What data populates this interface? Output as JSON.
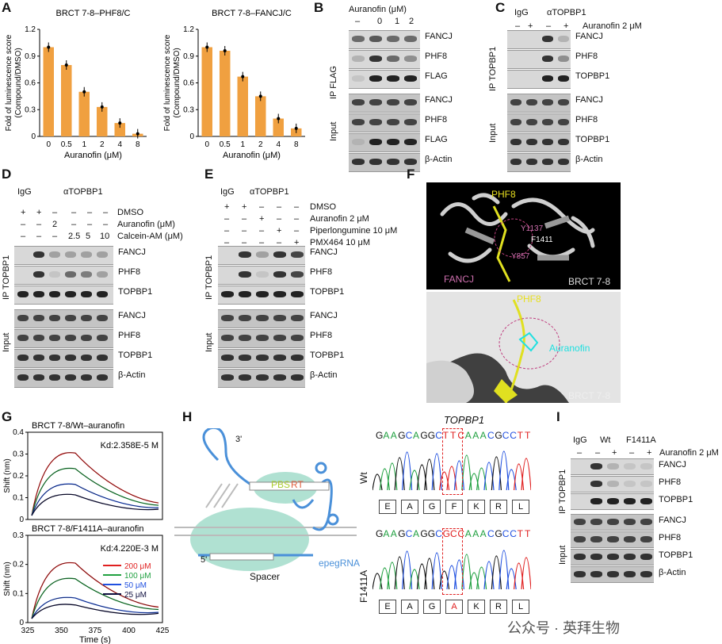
{
  "panel_letters": {
    "A": "A",
    "B": "B",
    "C": "C",
    "D": "D",
    "E": "E",
    "F": "F",
    "G": "G",
    "H": "H",
    "I": "I"
  },
  "chart_data": [
    {
      "type": "bar",
      "title": "BRCT 7-8–PHF8/C",
      "categories": [
        "0",
        "0.5",
        "1",
        "2",
        "4",
        "8"
      ],
      "values": [
        1.0,
        0.8,
        0.5,
        0.33,
        0.15,
        0.03
      ],
      "xlabel": "Auranofin (μM)",
      "ylabel": "Fold of luminescence score (Compound/DMSO)",
      "ylim": [
        0,
        1.2
      ],
      "yticks": [
        "0",
        "0.3",
        "0.6",
        "0.9",
        "1.2"
      ],
      "color": "#f0a040"
    },
    {
      "type": "bar",
      "title": "BRCT 7-8–FANCJ/C",
      "categories": [
        "0",
        "0.5",
        "1",
        "2",
        "4",
        "8"
      ],
      "values": [
        1.0,
        0.96,
        0.67,
        0.45,
        0.2,
        0.09
      ],
      "xlabel": "Auranofin (μM)",
      "ylabel": "Fold of luminescence score (Compound/DMSO)",
      "ylim": [
        0,
        1.2
      ],
      "yticks": [
        "0",
        "0.3",
        "0.6",
        "0.9",
        "1.2"
      ],
      "color": "#f0a040"
    },
    {
      "type": "line",
      "title": "BRCT 7-8/Wt–auranofin",
      "kd": "Kd:2.358E-5 M",
      "xlabel": "",
      "ylabel": "Shift (nm)",
      "ylim": [
        0,
        0.4
      ],
      "yticks": [
        "0",
        "0.1",
        "0.2",
        "0.3",
        "0.4"
      ]
    },
    {
      "type": "line",
      "title": "BRCT 7-8/F1411A–auranofin",
      "kd": "Kd:4.220E-3 M",
      "xlabel": "Time (s)",
      "ylabel": "Shift (nm)",
      "ylim": [
        0,
        0.3
      ],
      "yticks": [
        "0",
        "0.1",
        "0.2",
        "0.3"
      ],
      "xticks": [
        "325",
        "350",
        "375",
        "400",
        "425"
      ],
      "series": [
        {
          "name": "200 μM",
          "color": "#e02020"
        },
        {
          "name": "100 μM",
          "color": "#20a040"
        },
        {
          "name": "50 μM",
          "color": "#2050e0"
        },
        {
          "name": "25 μM",
          "color": "#101040"
        }
      ]
    }
  ],
  "B": {
    "header": "Auranofin (μM)",
    "lanes": [
      "–",
      "0",
      "1",
      "2"
    ],
    "side_ip": "IP FLAG",
    "side_input": "Input",
    "rows": [
      "FANCJ",
      "PHF8",
      "FLAG",
      "FANCJ",
      "PHF8",
      "FLAG",
      "β-Actin"
    ]
  },
  "C": {
    "igg": "IgG",
    "ab": "αTOPBP1",
    "aur": "Auranofin 2 μM",
    "signs": [
      "–",
      "+",
      "–",
      "+"
    ],
    "side_ip": "IP TOPBP1",
    "side_input": "Input",
    "rows": [
      "FANCJ",
      "PHF8",
      "TOPBP1",
      "FANCJ",
      "PHF8",
      "TOPBP1",
      "β-Actin"
    ]
  },
  "D": {
    "igg": "IgG",
    "ab": "αTOPBP1",
    "cond": [
      "DMSO",
      "Auranofin (μM)",
      "Calcein-AM (μM)"
    ],
    "r1": [
      "+",
      "+",
      "–",
      "–",
      "–",
      "–"
    ],
    "r2": [
      "–",
      "–",
      "2",
      "–",
      "–",
      "–"
    ],
    "r3": [
      "–",
      "–",
      "–",
      "2.5",
      "5",
      "10"
    ],
    "side_ip": "IP TOPBP1",
    "side_input": "Input",
    "rows": [
      "FANCJ",
      "PHF8",
      "TOPBP1",
      "FANCJ",
      "PHF8",
      "TOPBP1",
      "β-Actin"
    ]
  },
  "E": {
    "igg": "IgG",
    "ab": "αTOPBP1",
    "cond": [
      "DMSO",
      "Auranofin 2 μM",
      "Piperlongumine 10 μM",
      "PMX464 10 μM"
    ],
    "r1": [
      "+",
      "+",
      "–",
      "–",
      "–"
    ],
    "r2": [
      "–",
      "–",
      "+",
      "–",
      "–"
    ],
    "r3": [
      "–",
      "–",
      "–",
      "+",
      "–"
    ],
    "r4": [
      "–",
      "–",
      "–",
      "–",
      "+"
    ],
    "side_ip": "IP TOPBP1",
    "side_input": "Input",
    "rows": [
      "FANCJ",
      "PHF8",
      "TOPBP1",
      "FANCJ",
      "PHF8",
      "TOPBP1",
      "β-Actin"
    ]
  },
  "F": {
    "phf8": "PHF8",
    "y1137": "Y1137",
    "f1411": "F1411",
    "y857": "Y857",
    "fancj": "FANCJ",
    "brct": "BRCT 7-8",
    "phf8b": "PHF8",
    "auranofin": "Auranofin",
    "brct2": "BRCT 7-8"
  },
  "H": {
    "gene": "TOPBP1",
    "three": "3'",
    "five": "5'",
    "pbs": "PBS",
    "rt": "RT",
    "spacer": "Spacer",
    "epeg": "epegRNA",
    "wt": "Wt",
    "mut": "F1411A",
    "seq_wt": [
      "G",
      "A",
      "A",
      "G",
      "C",
      "A",
      "G",
      "G",
      "C",
      "T",
      "T",
      "C",
      "A",
      "A",
      "A",
      "C",
      "G",
      "C",
      "C",
      "T",
      "T"
    ],
    "seq_mut": [
      "G",
      "A",
      "A",
      "G",
      "C",
      "A",
      "G",
      "G",
      "C",
      "G",
      "C",
      "C",
      "A",
      "A",
      "A",
      "C",
      "G",
      "C",
      "C",
      "T",
      "T"
    ],
    "aa_wt": [
      "E",
      "A",
      "G",
      "F",
      "K",
      "R",
      "L"
    ],
    "aa_mut": [
      "E",
      "A",
      "G",
      "A",
      "K",
      "R",
      "L"
    ]
  },
  "I": {
    "igg": "IgG",
    "wt": "Wt",
    "mut": "F1411A",
    "aur": "Auranofin 2 μM",
    "signs": [
      "–",
      "–",
      "+",
      "–",
      "+"
    ],
    "side_ip": "IP TOPBP1",
    "side_input": "Input",
    "rows": [
      "FANCJ",
      "PHF8",
      "TOPBP1",
      "FANCJ",
      "PHF8",
      "TOPBP1",
      "β-Actin"
    ]
  },
  "watermark": "公众号 · 英拜生物"
}
